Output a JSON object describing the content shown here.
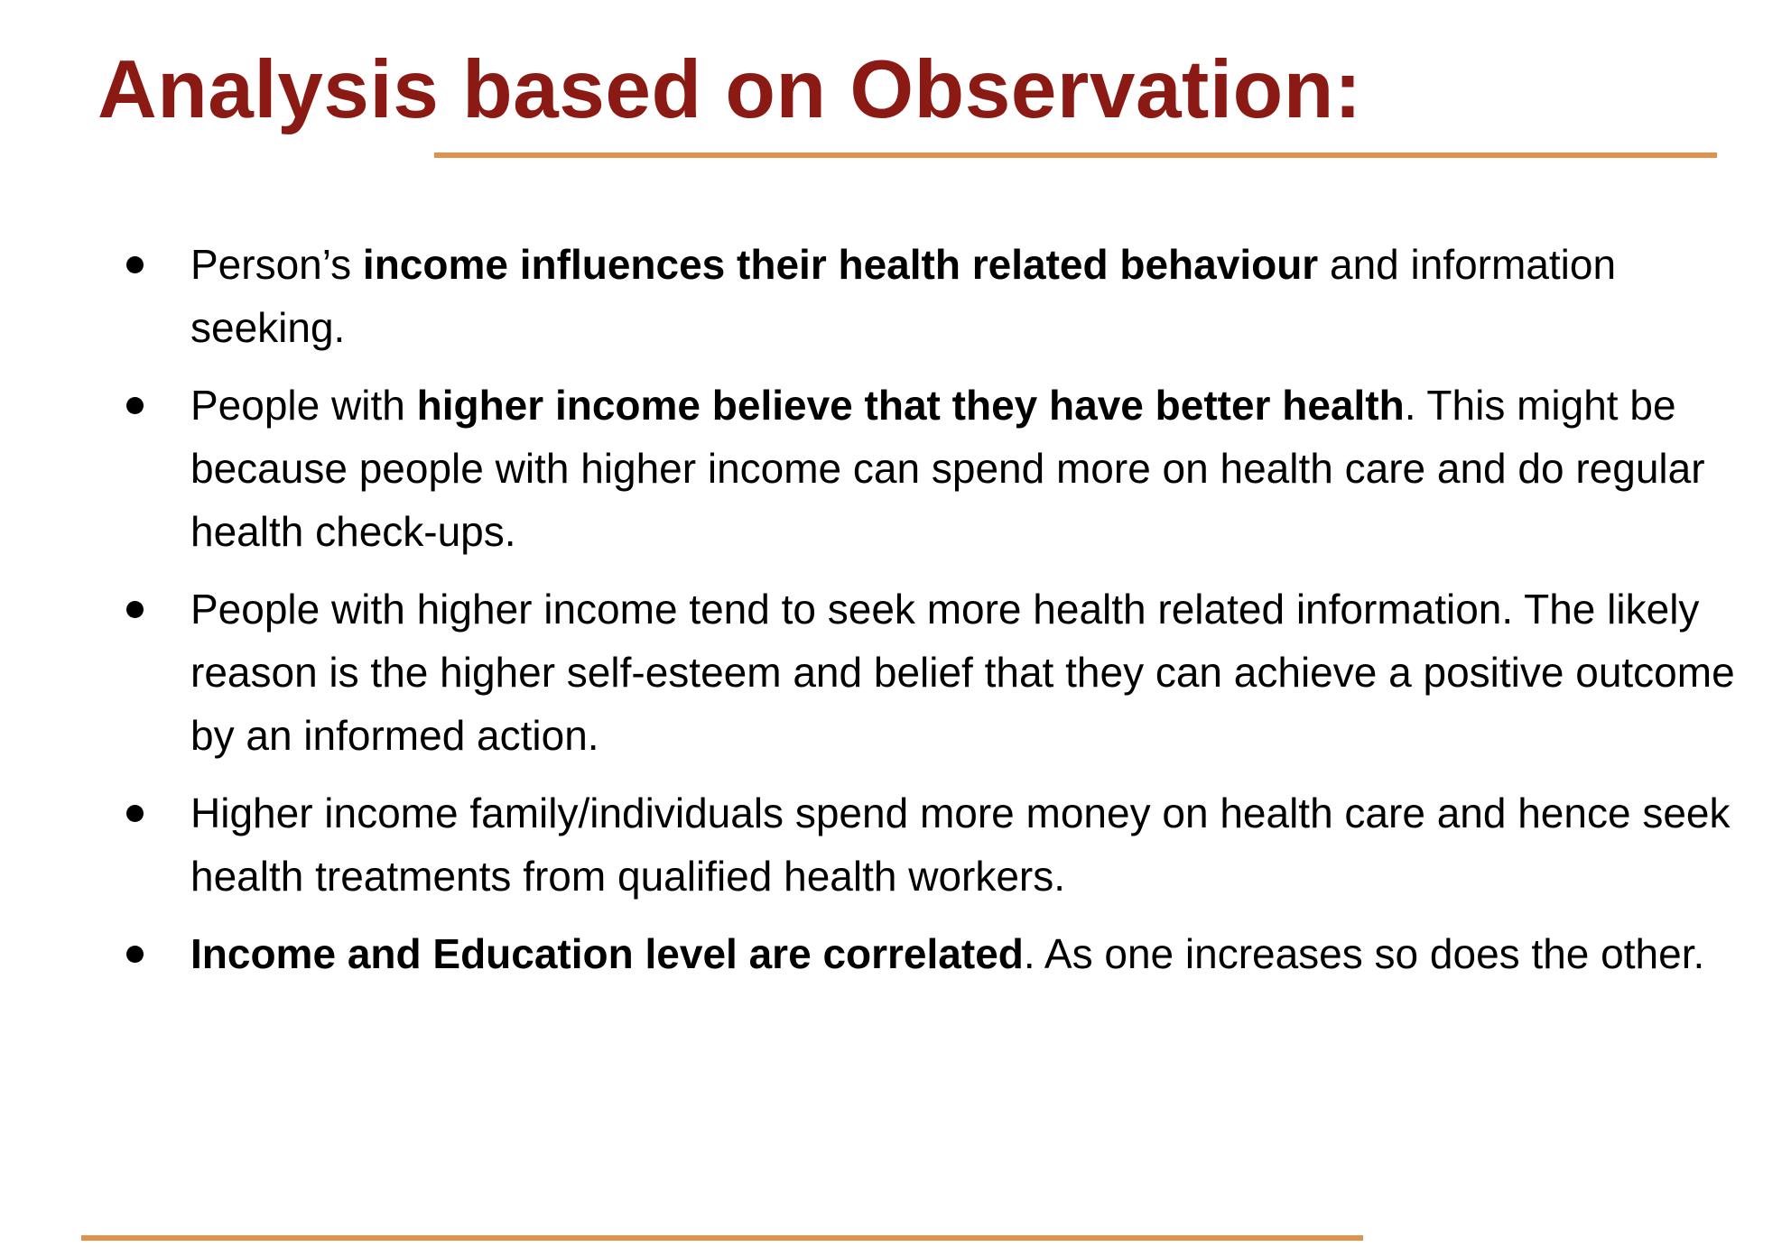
{
  "slide": {
    "title": "Analysis based on Observation:",
    "colors": {
      "title": "#8B1A14",
      "accent_rule": "#E0914A",
      "body_text": "#000000"
    },
    "bullets": [
      {
        "segments": [
          {
            "text": "Person’s ",
            "bold": false
          },
          {
            "text": "income influences their health related behaviour",
            "bold": true
          },
          {
            "text": " and information seeking.",
            "bold": false
          }
        ]
      },
      {
        "segments": [
          {
            "text": "People with ",
            "bold": false
          },
          {
            "text": "higher income believe that they have better health",
            "bold": true
          },
          {
            "text": ". This might be because people with higher income can spend more on health care and do regular health check-ups.",
            "bold": false
          }
        ]
      },
      {
        "segments": [
          {
            "text": "People with higher income tend to seek more health related information. The likely reason is the higher self-esteem and belief that they can achieve a positive outcome by an informed action.",
            "bold": false
          }
        ]
      },
      {
        "segments": [
          {
            "text": "Higher income family/individuals spend more money on health care and hence seek health treatments from qualified health workers.",
            "bold": false
          }
        ]
      },
      {
        "segments": [
          {
            "text": "Income and Education level are correlated",
            "bold": true
          },
          {
            "text": ". As one increases so does the other.",
            "bold": false
          }
        ]
      }
    ]
  }
}
